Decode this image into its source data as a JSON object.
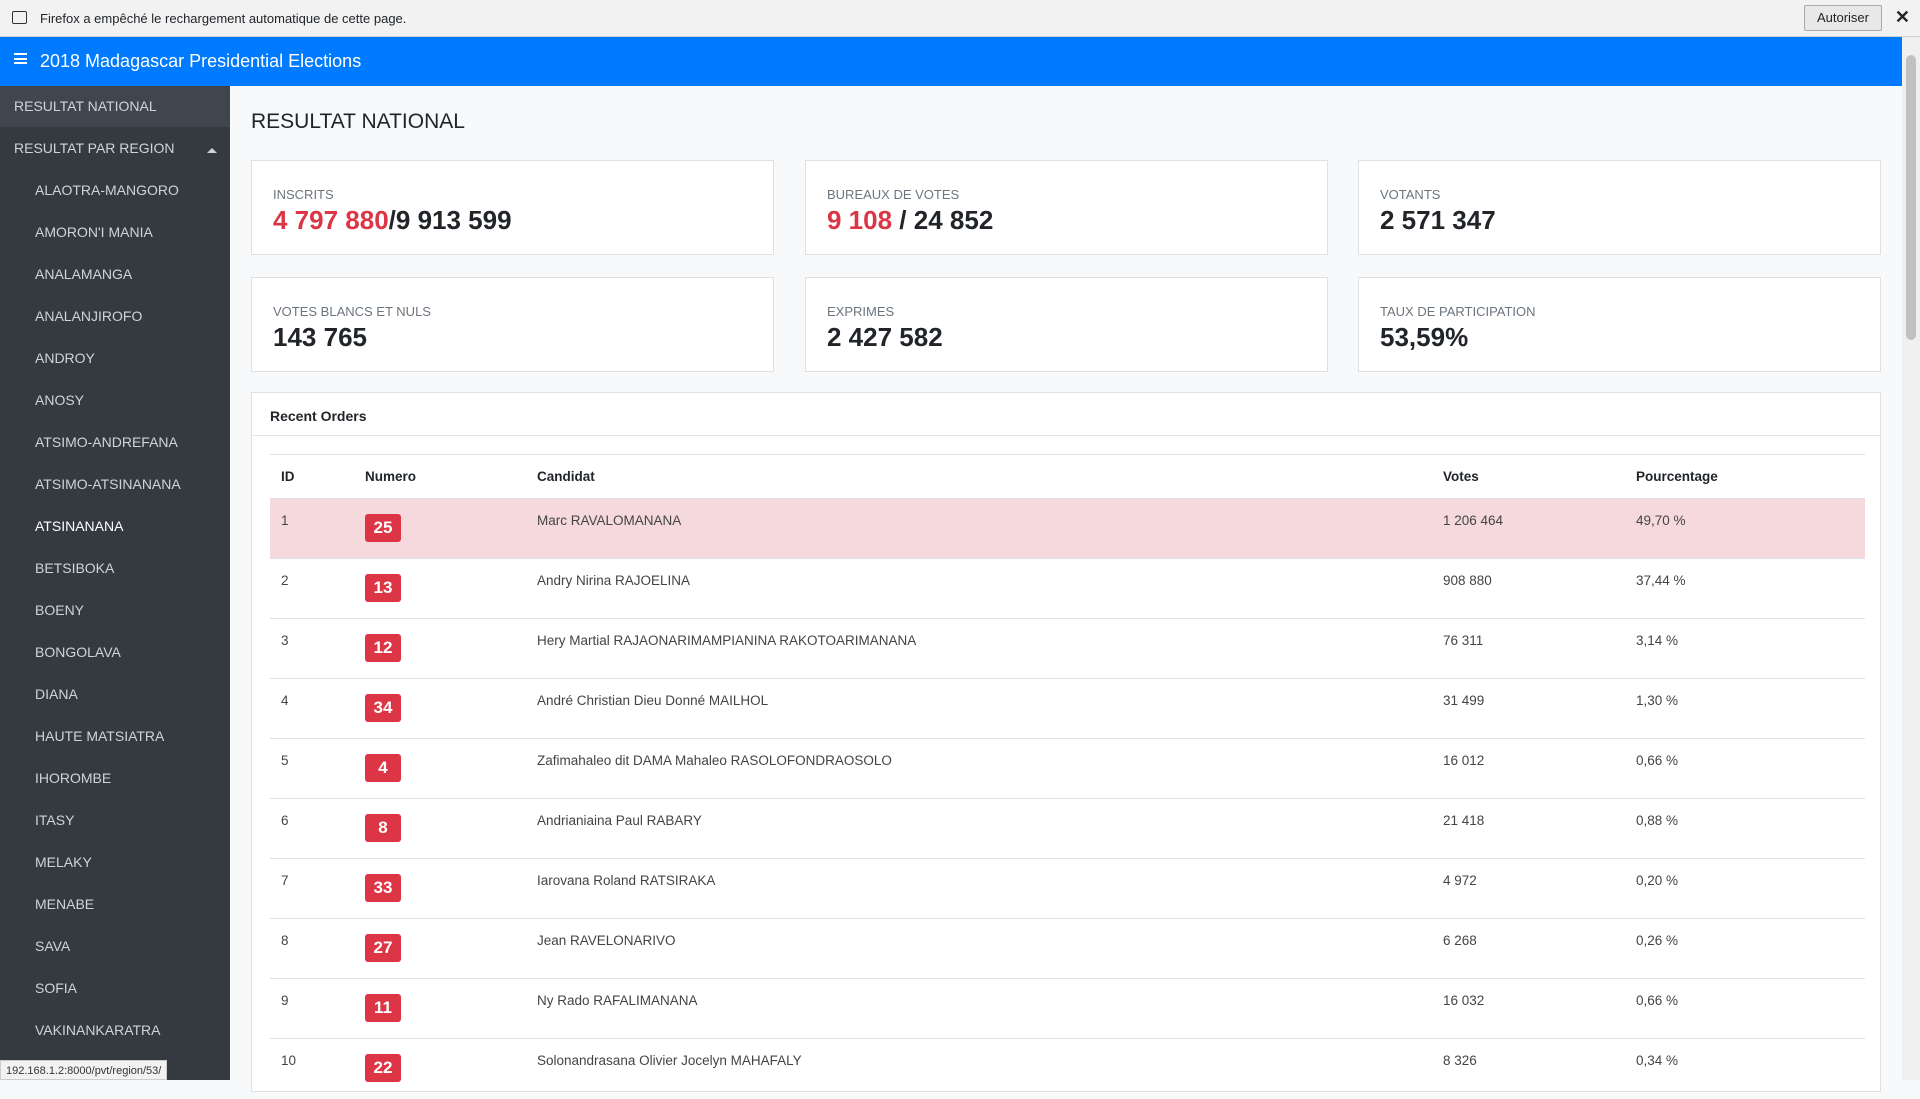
{
  "notification": {
    "text": "Firefox a empêché le rechargement automatique de cette page.",
    "button": "Autoriser"
  },
  "navbar": {
    "title": "2018 Madagascar Presidential Elections"
  },
  "sidebar": {
    "national": "RESULTAT NATIONAL",
    "by_region": "RESULTAT PAR REGION",
    "active": "ATSINANANA",
    "regions": [
      "ALAOTRA-MANGORO",
      "AMORON'I MANIA",
      "ANALAMANGA",
      "ANALANJIROFO",
      "ANDROY",
      "ANOSY",
      "ATSIMO-ANDREFANA",
      "ATSIMO-ATSINANANA",
      "ATSINANANA",
      "BETSIBOKA",
      "BOENY",
      "BONGOLAVA",
      "DIANA",
      "HAUTE MATSIATRA",
      "IHOROMBE",
      "ITASY",
      "MELAKY",
      "MENABE",
      "SAVA",
      "SOFIA",
      "VAKINANKARATRA"
    ]
  },
  "heading": "RESULTAT NATIONAL",
  "cards": [
    {
      "label": "INSCRITS",
      "highlight": "4 797 880",
      "value": "/9 913 599"
    },
    {
      "label": "BUREAUX DE VOTES",
      "highlight": "9 108",
      "value": " / 24 852"
    },
    {
      "label": "VOTANTS",
      "value": "2 571 347"
    },
    {
      "label": "VOTES BLANCS ET NULS",
      "value": "143 765"
    },
    {
      "label": "EXPRIMES",
      "value": "2 427 582"
    },
    {
      "label": "TAUX DE PARTICIPATION",
      "value": "53,59%"
    }
  ],
  "table": {
    "title": "Recent Orders",
    "columns": [
      "ID",
      "Numero",
      "Candidat",
      "Votes",
      "Pourcentage"
    ],
    "rows": [
      [
        "1",
        "25",
        "Marc RAVALOMANANA",
        "1 206 464",
        "49,70 %"
      ],
      [
        "2",
        "13",
        "Andry Nirina RAJOELINA",
        "908 880",
        "37,44 %"
      ],
      [
        "3",
        "12",
        "Hery Martial RAJAONARIMAMPIANINA RAKOTOARIMANANA",
        "76 311",
        "3,14 %"
      ],
      [
        "4",
        "34",
        "André Christian Dieu Donné MAILHOL",
        "31 499",
        "1,30 %"
      ],
      [
        "5",
        "4",
        "Zafimahaleo dit DAMA Mahaleo RASOLOFONDRAOSOLO",
        "16 012",
        "0,66 %"
      ],
      [
        "6",
        "8",
        "Andrianiaina Paul RABARY",
        "21 418",
        "0,88 %"
      ],
      [
        "7",
        "33",
        "Iarovana Roland RATSIRAKA",
        "4 972",
        "0,20 %"
      ],
      [
        "8",
        "27",
        "Jean RAVELONARIVO",
        "6 268",
        "0,26 %"
      ],
      [
        "9",
        "11",
        "Ny Rado RAFALIMANANA",
        "16 032",
        "0,66 %"
      ],
      [
        "10",
        "22",
        "Solonandrasana Olivier Jocelyn MAHAFALY",
        "8 326",
        "0,34 %"
      ]
    ]
  },
  "status_url": "192.168.1.2:8000/pvt/region/53/"
}
